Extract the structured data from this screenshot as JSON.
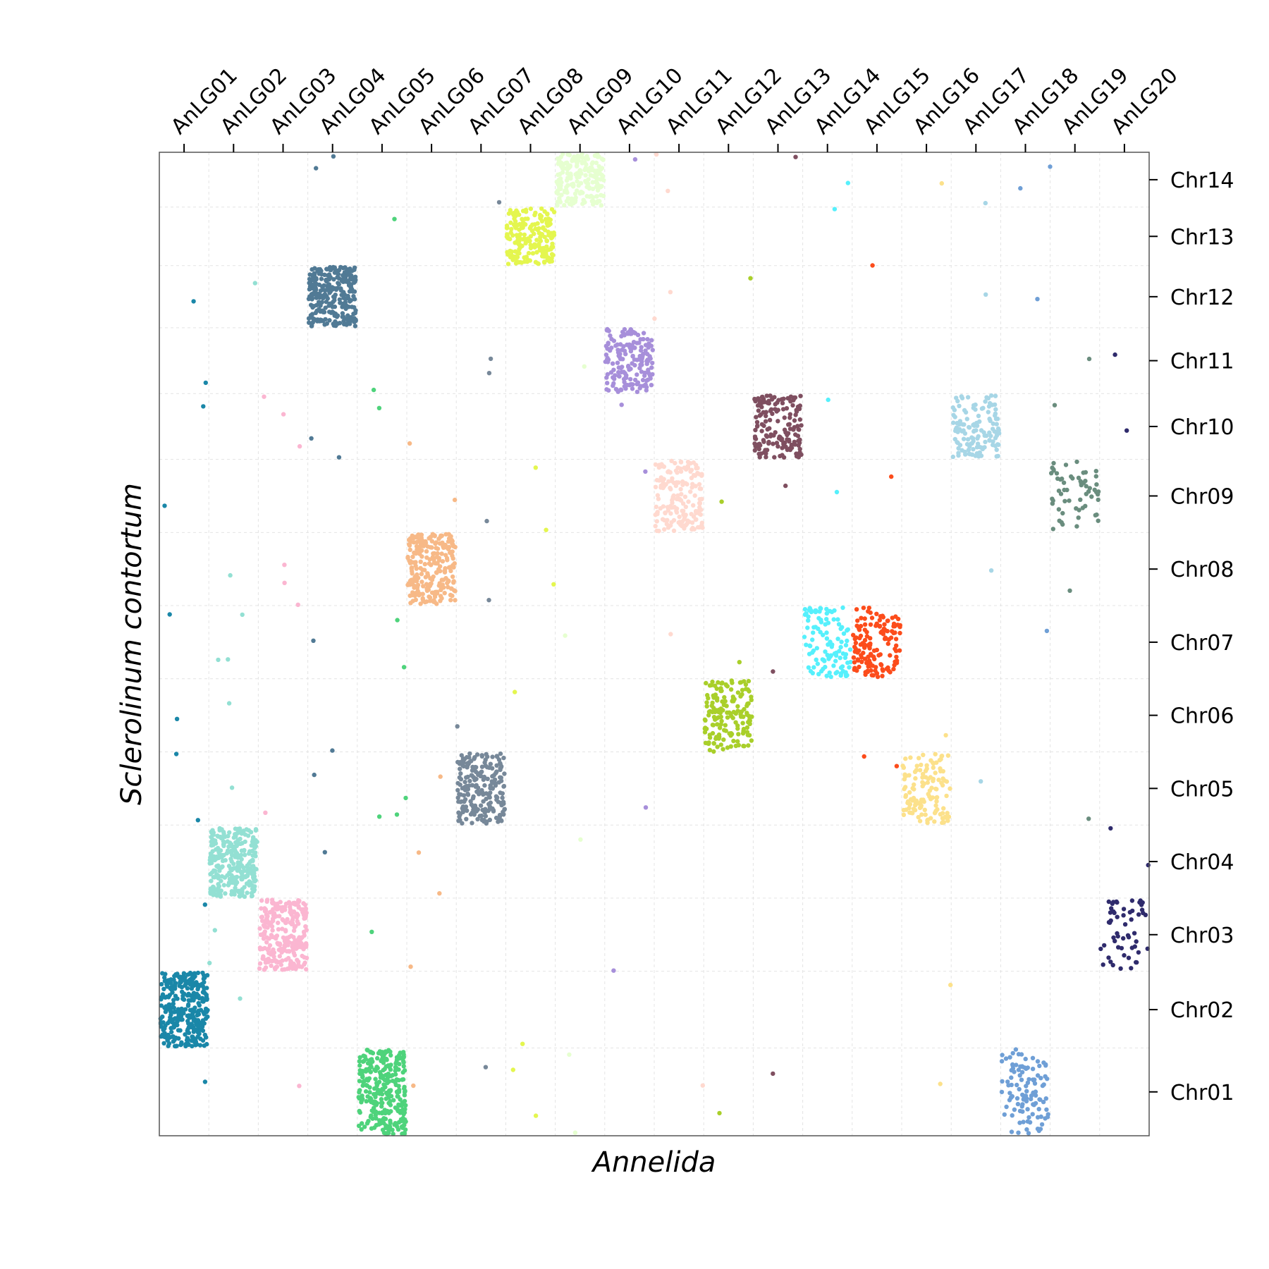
{
  "chart_data": {
    "type": "scatter",
    "xlabel": "Annelida",
    "ylabel": "Sclerolinum contortum",
    "x_categories": [
      "AnLG01",
      "AnLG02",
      "AnLG03",
      "AnLG04",
      "AnLG05",
      "AnLG06",
      "AnLG07",
      "AnLG08",
      "AnLG09",
      "AnLG10",
      "AnLG11",
      "AnLG12",
      "AnLG13",
      "AnLG14",
      "AnLG15",
      "AnLG16",
      "AnLG17",
      "AnLG18",
      "AnLG19",
      "AnLG20"
    ],
    "y_categories": [
      "Chr01",
      "Chr02",
      "Chr03",
      "Chr04",
      "Chr05",
      "Chr06",
      "Chr07",
      "Chr08",
      "Chr09",
      "Chr10",
      "Chr11",
      "Chr12",
      "Chr13",
      "Chr14"
    ],
    "x_axis_position": "top",
    "y_axis_position": "right",
    "grid": true,
    "x_bounds": [
      0,
      1,
      2,
      3,
      4,
      5,
      6,
      7,
      8,
      9,
      10,
      11,
      12,
      13,
      14,
      15,
      16,
      17,
      18,
      19,
      20
    ],
    "y_bounds": [
      0,
      1.2,
      2.25,
      3.25,
      4.25,
      5.25,
      6.25,
      7.25,
      8.25,
      9.25,
      10.15,
      11.05,
      11.9,
      12.7,
      13.45
    ],
    "clusters": [
      {
        "x": "AnLG01",
        "y": "Chr02",
        "color": "#1a87a8",
        "count": 320
      },
      {
        "x": "AnLG02",
        "y": "Chr04",
        "color": "#93e0d3",
        "count": 300
      },
      {
        "x": "AnLG03",
        "y": "Chr03",
        "color": "#fbb6d1",
        "count": 270
      },
      {
        "x": "AnLG04",
        "y": "Chr12",
        "color": "#517a95",
        "count": 270
      },
      {
        "x": "AnLG05",
        "y": "Chr01",
        "color": "#4ed37b",
        "count": 290
      },
      {
        "x": "AnLG06",
        "y": "Chr08",
        "color": "#f7b987",
        "count": 250
      },
      {
        "x": "AnLG07",
        "y": "Chr05",
        "color": "#778899",
        "count": 220
      },
      {
        "x": "AnLG08",
        "y": "Chr13",
        "color": "#e4f64f",
        "count": 200
      },
      {
        "x": "AnLG09",
        "y": "Chr14",
        "color": "#e6ffd0",
        "count": 200
      },
      {
        "x": "AnLG10",
        "y": "Chr11",
        "color": "#a78fda",
        "count": 170
      },
      {
        "x": "AnLG11",
        "y": "Chr09",
        "color": "#ffd9cf",
        "count": 170
      },
      {
        "x": "AnLG12",
        "y": "Chr06",
        "color": "#a9cf2a",
        "count": 160
      },
      {
        "x": "AnLG13",
        "y": "Chr10",
        "color": "#7f4f60",
        "count": 160
      },
      {
        "x": "AnLG14",
        "y": "Chr07",
        "color": "#56f0fc",
        "count": 110
      },
      {
        "x": "AnLG15",
        "y": "Chr07",
        "color": "#fc4c1b",
        "count": 140
      },
      {
        "x": "AnLG16",
        "y": "Chr05",
        "color": "#fce18b",
        "count": 130
      },
      {
        "x": "AnLG17",
        "y": "Chr10",
        "color": "#a7d6e6",
        "count": 130
      },
      {
        "x": "AnLG18",
        "y": "Chr01",
        "color": "#6f9fd6",
        "count": 110
      },
      {
        "x": "AnLG19",
        "y": "Chr09",
        "color": "#6a8d7e",
        "count": 60
      },
      {
        "x": "AnLG20",
        "y": "Chr03",
        "color": "#2f2b6c",
        "count": 55
      }
    ]
  }
}
